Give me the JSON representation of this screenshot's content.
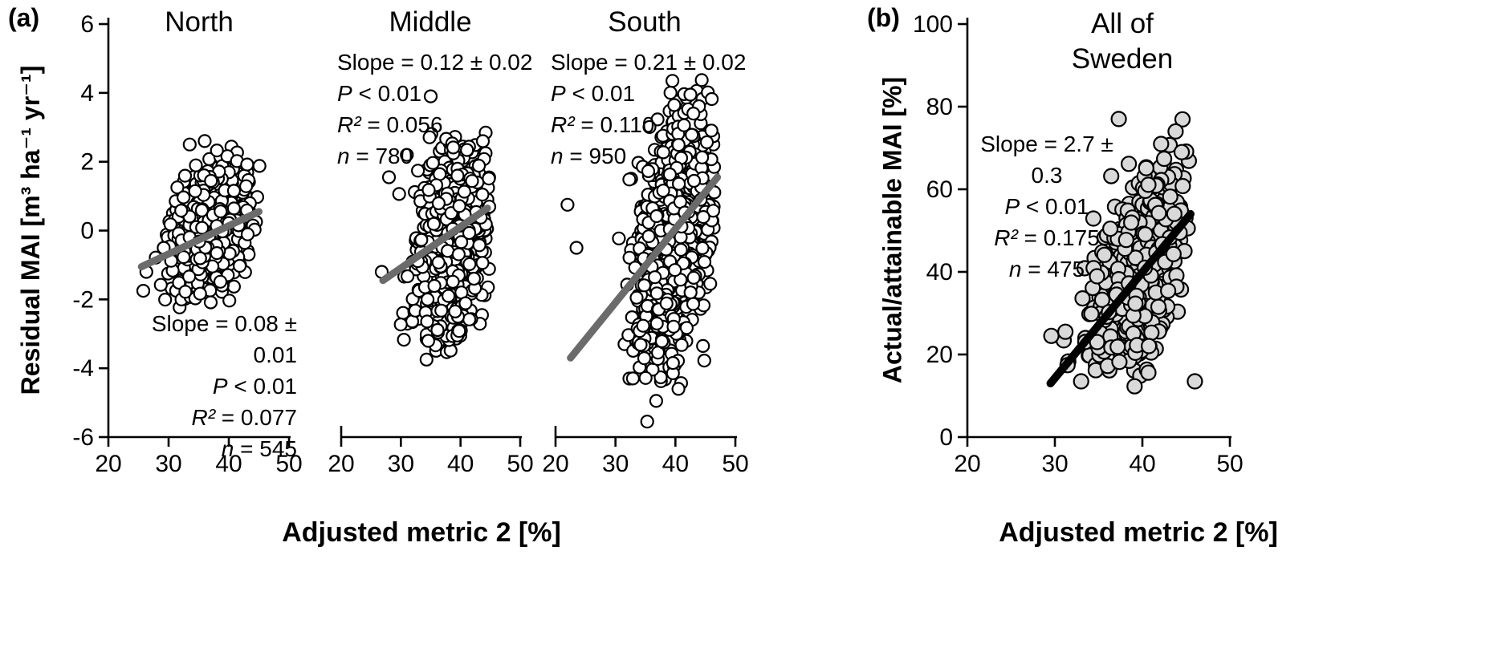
{
  "figure": {
    "panel_a": {
      "label": "(a)",
      "y_axis_label": "Residual MAI [m³ ha⁻¹ yr⁻¹]",
      "x_axis_label": "Adjusted metric 2 [%]"
    },
    "panel_b": {
      "label": "(b)",
      "y_axis_label": "Actual/attainable MAI [%]",
      "x_axis_label": "Adjusted metric 2 [%]",
      "title": "All of\nSweden"
    }
  },
  "chart_data": [
    {
      "id": "north",
      "type": "scatter",
      "region": "North",
      "xlabel": "Adjusted metric 2 [%]",
      "ylabel": "Residual MAI [m³ ha⁻¹ yr⁻¹]",
      "xlim": [
        20,
        50
      ],
      "ylim": [
        -6,
        6
      ],
      "xticks": [
        20,
        30,
        40,
        50
      ],
      "yticks": [
        6,
        4,
        2,
        0,
        -2,
        -4,
        -6
      ],
      "n": 545,
      "slope": 0.08,
      "slope_se": 0.01,
      "p": "< 0.01",
      "r2": 0.077,
      "stats": {
        "slope_text": "Slope = 0.08 ± 0.01",
        "p_label": "P",
        "p_text": " < 0.01",
        "r2_label": "R²",
        "r2_text": " = 0.077",
        "n_label": "n",
        "n_text": " = 545"
      },
      "regression_line": {
        "x1": 25.5,
        "y1": -1.05,
        "x2": 45.0,
        "y2": 0.55,
        "color": "#6b6b6b",
        "width": 9
      },
      "marker": {
        "shape": "open-circle",
        "fill": "#ffffff",
        "stroke": "#000000",
        "radius": 7.5
      },
      "cluster": {
        "x_mean": 37.5,
        "x_sd": 3.3,
        "y_mean": 0.05,
        "y_sd": 0.9,
        "rho": 0.3,
        "x_range": [
          26,
          46
        ],
        "y_range": [
          -2.3,
          2.5
        ],
        "seed": 101
      },
      "extra_points": [
        [
          25.8,
          -1.75
        ],
        [
          26.3,
          -1.2
        ],
        [
          33.5,
          2.5
        ],
        [
          36.0,
          2.6
        ]
      ]
    },
    {
      "id": "middle",
      "type": "scatter",
      "region": "Middle",
      "xlabel": "Adjusted metric 2 [%]",
      "ylabel": "Residual MAI [m³ ha⁻¹ yr⁻¹]",
      "xlim": [
        20,
        50
      ],
      "ylim": [
        -6,
        6
      ],
      "xticks": [
        20,
        30,
        40,
        50
      ],
      "yticks": [
        6,
        4,
        2,
        0,
        -2,
        -4,
        -6
      ],
      "n": 780,
      "slope": 0.12,
      "slope_se": 0.02,
      "p": "< 0.01",
      "r2": 0.056,
      "stats": {
        "slope_text": "Slope = 0.12 ± 0.02",
        "p_label": "P",
        "p_text": " < 0.01",
        "r2_label": "R²",
        "r2_text": " = 0.056",
        "n_label": "n",
        "n_text": " = 780"
      },
      "regression_line": {
        "x1": 27.0,
        "y1": -1.45,
        "x2": 44.5,
        "y2": 0.65,
        "color": "#6b6b6b",
        "width": 9
      },
      "marker": {
        "shape": "open-circle",
        "fill": "#ffffff",
        "stroke": "#000000",
        "radius": 7.5
      },
      "cluster": {
        "x_mean": 38.5,
        "x_sd": 2.9,
        "y_mean": -0.3,
        "y_sd": 1.5,
        "rho": 0.25,
        "x_range": [
          28,
          45
        ],
        "y_range": [
          -3.6,
          2.9
        ],
        "seed": 202
      },
      "extra_points": [
        [
          35.0,
          3.9
        ],
        [
          26.8,
          -1.2
        ],
        [
          28.0,
          1.55
        ],
        [
          34.3,
          -3.75
        ],
        [
          31.0,
          2.2
        ]
      ]
    },
    {
      "id": "south",
      "type": "scatter",
      "region": "South",
      "xlabel": "Adjusted metric 2 [%]",
      "ylabel": "Residual MAI [m³ ha⁻¹ yr⁻¹]",
      "xlim": [
        20,
        50
      ],
      "ylim": [
        -6,
        6
      ],
      "xticks": [
        20,
        30,
        40,
        50
      ],
      "yticks": [
        6,
        4,
        2,
        0,
        -2,
        -4,
        -6
      ],
      "n": 950,
      "slope": 0.21,
      "slope_se": 0.02,
      "p": "< 0.01",
      "r2": 0.11,
      "stats": {
        "slope_text": "Slope = 0.21 ± 0.02",
        "p_label": "P",
        "p_text": " < 0.01",
        "r2_label": "R²",
        "r2_text": " = 0.110",
        "n_label": "n",
        "n_text": " = 950"
      },
      "regression_line": {
        "x1": 22.5,
        "y1": -3.7,
        "x2": 47.0,
        "y2": 1.55,
        "color": "#6b6b6b",
        "width": 9
      },
      "marker": {
        "shape": "open-circle",
        "fill": "#ffffff",
        "stroke": "#000000",
        "radius": 7.5
      },
      "cluster": {
        "x_mean": 39.5,
        "x_sd": 2.9,
        "y_mean": -0.2,
        "y_sd": 1.8,
        "rho": 0.35,
        "x_range": [
          30,
          47
        ],
        "y_range": [
          -4.5,
          4.4
        ],
        "seed": 303
      },
      "extra_points": [
        [
          22.0,
          0.75
        ],
        [
          35.3,
          -5.55
        ],
        [
          36.8,
          -4.95
        ],
        [
          40.5,
          -4.6
        ],
        [
          42.5,
          3.95
        ],
        [
          39.5,
          4.35
        ],
        [
          43.0,
          3.4
        ],
        [
          23.5,
          -0.5
        ]
      ]
    },
    {
      "id": "sweden",
      "type": "scatter",
      "region": "All of Sweden",
      "xlabel": "Adjusted metric 2 [%]",
      "ylabel": "Actual/attainable MAI [%]",
      "xlim": [
        20,
        50
      ],
      "ylim": [
        0,
        100
      ],
      "xticks": [
        20,
        30,
        40,
        50
      ],
      "yticks": [
        100,
        80,
        60,
        40,
        20,
        0
      ],
      "n": 475,
      "slope": 2.7,
      "slope_se": 0.3,
      "p": "< 0.01",
      "r2": 0.175,
      "stats": {
        "slope_text": "Slope = 2.7 ± 0.3",
        "p_label": "P",
        "p_text": " < 0.01",
        "r2_label": "R²",
        "r2_text": " = 0.175",
        "n_label": "n",
        "n_text": " = 475"
      },
      "regression_line": {
        "x1": 29.5,
        "y1": 13.0,
        "x2": 45.5,
        "y2": 54.0,
        "color": "#000000",
        "width": 10
      },
      "marker": {
        "shape": "filled-circle",
        "fill": "#d9d9d9",
        "stroke": "#000000",
        "radius": 9
      },
      "cluster": {
        "x_mean": 39.5,
        "x_sd": 2.8,
        "y_mean": 40,
        "y_sd": 13,
        "rho": 0.45,
        "x_range": [
          31,
          45.5
        ],
        "y_range": [
          12,
          77
        ],
        "seed": 404
      },
      "extra_points": [
        [
          29.6,
          24.5
        ],
        [
          31.2,
          25.5
        ],
        [
          33.0,
          13.5
        ],
        [
          37.3,
          77.0
        ],
        [
          43.8,
          74.0
        ],
        [
          44.5,
          69.0
        ],
        [
          46.0,
          13.5
        ]
      ]
    }
  ]
}
